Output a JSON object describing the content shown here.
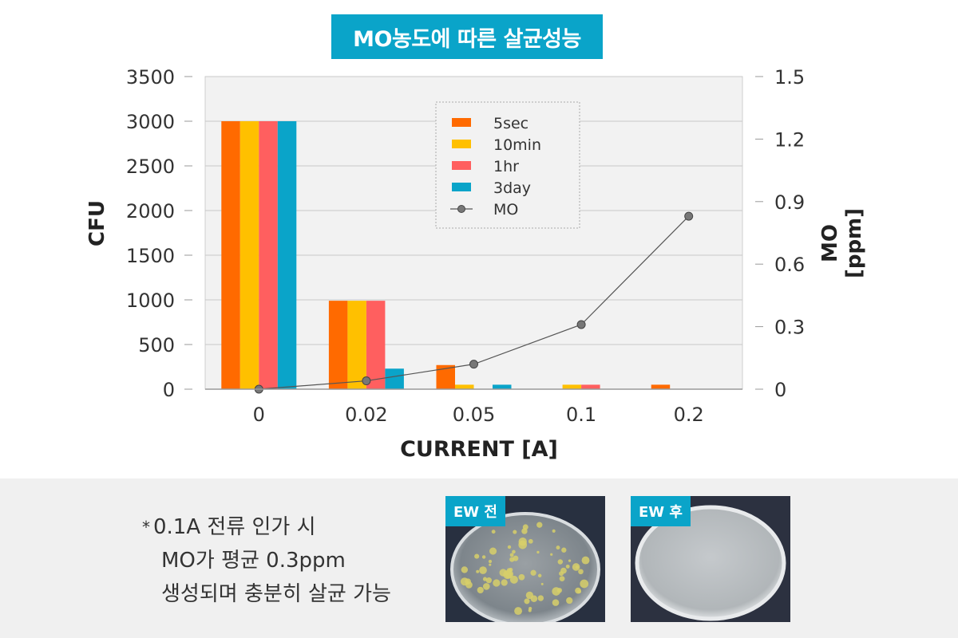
{
  "header": {
    "title": "MO농도에 따른 살균성능"
  },
  "chart_data": {
    "type": "bar",
    "categories": [
      "0",
      "0.02",
      "0.05",
      "0.1",
      "0.2"
    ],
    "series": [
      {
        "name": "5sec",
        "values": [
          3000,
          990,
          270,
          0,
          50
        ],
        "color": "#ff6a00"
      },
      {
        "name": "10min",
        "values": [
          3000,
          990,
          50,
          50,
          0
        ],
        "color": "#ffc000"
      },
      {
        "name": "1hr",
        "values": [
          3000,
          990,
          0,
          50,
          0
        ],
        "color": "#ff5f5f"
      },
      {
        "name": "3day",
        "values": [
          3000,
          230,
          50,
          0,
          0
        ],
        "color": "#0aa4c9"
      }
    ],
    "line_series": {
      "name": "MO",
      "axis": "right",
      "values": [
        0,
        0.04,
        0.12,
        0.31,
        0.83
      ],
      "color": "#555555"
    },
    "xlabel": "CURRENT [A]",
    "ylabel": "CFU",
    "ylabel_right": "MO [ppm]",
    "ylim": [
      0,
      3500
    ],
    "ylim_right": [
      0,
      1.5
    ],
    "yticks": [
      "0",
      "500",
      "1000",
      "1500",
      "2000",
      "2500",
      "3000",
      "3500"
    ],
    "yticks_right": [
      "0",
      "0.3",
      "0.6",
      "0.9",
      "1.2",
      "1.5"
    ],
    "grid": true,
    "legend_position": "top-center"
  },
  "note": {
    "bullet": "*",
    "lines": [
      "0.1A 전류 인가 시",
      "MO가 평균 0.3ppm",
      "생성되며 충분히 살균 가능"
    ]
  },
  "photos": [
    {
      "label": "EW 전"
    },
    {
      "label": "EW 후"
    }
  ]
}
